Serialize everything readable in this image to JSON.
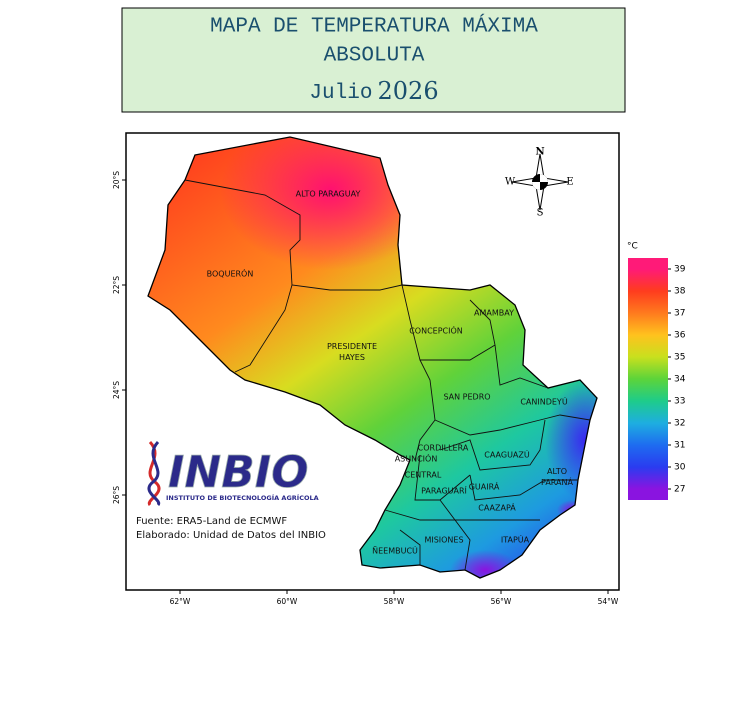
{
  "title": {
    "line1": "MAPA DE TEMPERATURA MÁXIMA",
    "line2": "ABSOLUTA",
    "month": "Julio",
    "year": "2026"
  },
  "map": {
    "departments": [
      {
        "lines": [
          "ALTO PARAGUAY"
        ]
      },
      {
        "lines": [
          "BOQUERÓN"
        ]
      },
      {
        "lines": [
          "PRESIDENTE",
          "HAYES"
        ]
      },
      {
        "lines": [
          "CONCEPCIÓN"
        ]
      },
      {
        "lines": [
          "AMAMBAY"
        ]
      },
      {
        "lines": [
          "SAN PEDRO"
        ]
      },
      {
        "lines": [
          "CANINDEYÚ"
        ]
      },
      {
        "lines": [
          "CORDILLERA"
        ]
      },
      {
        "lines": [
          "ASUNCIÓN"
        ]
      },
      {
        "lines": [
          "CENTRAL"
        ]
      },
      {
        "lines": [
          "CAAGUAZÚ"
        ]
      },
      {
        "lines": [
          "ALTO",
          "PARANÁ"
        ]
      },
      {
        "lines": [
          "PARAGUARÍ"
        ]
      },
      {
        "lines": [
          "GUAIRÁ"
        ]
      },
      {
        "lines": [
          "CAAZAPÁ"
        ]
      },
      {
        "lines": [
          "MISIONES"
        ]
      },
      {
        "lines": [
          "ITAPÚA"
        ]
      },
      {
        "lines": [
          "ÑEEMBUCÚ"
        ]
      }
    ],
    "xticks": [
      {
        "value": -62,
        "label": "62°W"
      },
      {
        "value": -60,
        "label": "60°W"
      },
      {
        "value": -58,
        "label": "58°W"
      },
      {
        "value": -56,
        "label": "56°W"
      },
      {
        "value": -54,
        "label": "54°W"
      }
    ],
    "yticks": [
      {
        "value": -20,
        "label": "20°S"
      },
      {
        "value": -22,
        "label": "22°S"
      },
      {
        "value": -24,
        "label": "24°S"
      },
      {
        "value": -26,
        "label": "26°S"
      }
    ],
    "compass": {
      "n": "N",
      "s": "S",
      "e": "E",
      "w": "W"
    },
    "colorbar": {
      "unit": "°C",
      "ticks": [
        39,
        38,
        37,
        36,
        35,
        34,
        33,
        32,
        31,
        30,
        27
      ],
      "colors": [
        "#ff1a78",
        "#ff3c1e",
        "#ff7a1e",
        "#ffc21e",
        "#c8e01e",
        "#5cd43a",
        "#1ecc8a",
        "#1eaee0",
        "#1e6cf0",
        "#2a3cf0",
        "#8a14e0"
      ]
    }
  },
  "logo": {
    "name": "INBIO",
    "subtitle": "INSTITUTO DE BIOTECNOLOGÍA AGRÍCOLA"
  },
  "source": {
    "line1": "Fuente: ERA5-Land de ECMWF",
    "line2": "Elaborado: Unidad de Datos del INBIO"
  }
}
